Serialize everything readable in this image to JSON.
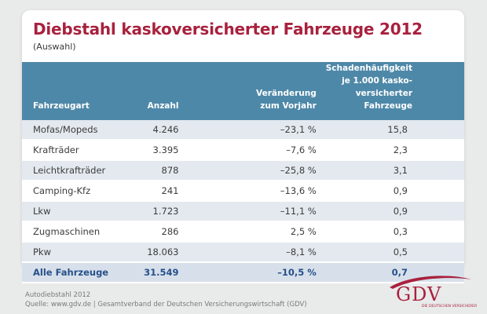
{
  "title": "Diebstahl kaskoversicherter Fahrzeuge 2012",
  "subtitle": "(Auswahl)",
  "table": {
    "headers": {
      "vehicle_type": "Fahrzeugart",
      "count": "Anzahl",
      "change_line1": "Veränderung",
      "change_line2": "zum Vorjahr",
      "freq_line1": "Schadenhäufigkeit",
      "freq_line2": "je 1.000 kasko-",
      "freq_line3": "versicherter Fahrzeuge"
    },
    "rows": [
      {
        "vehicle_type": "Mofas/Mopeds",
        "count": "4.246",
        "change": "–23,1 %",
        "freq": "15,8"
      },
      {
        "vehicle_type": "Krafträder",
        "count": "3.395",
        "change": "–7,6 %",
        "freq": "2,3"
      },
      {
        "vehicle_type": "Leichtkrafträder",
        "count": "878",
        "change": "–25,8 %",
        "freq": "3,1"
      },
      {
        "vehicle_type": "Camping-Kfz",
        "count": "241",
        "change": "–13,6 %",
        "freq": "0,9"
      },
      {
        "vehicle_type": "Lkw",
        "count": "1.723",
        "change": "–11,1 %",
        "freq": "0,9"
      },
      {
        "vehicle_type": "Zugmaschinen",
        "count": "286",
        "change": "2,5 %",
        "freq": "0,3"
      },
      {
        "vehicle_type": "Pkw",
        "count": "18.063",
        "change": "–8,1 %",
        "freq": "0,5"
      }
    ],
    "total": {
      "vehicle_type": "Alle Fahrzeuge",
      "count": "31.549",
      "change": "–10,5 %",
      "freq": "0,7"
    }
  },
  "footer": {
    "line1": "Autodiebstahl 2012",
    "line2": "Quelle: www.gdv.de | Gesamtverband der Deutschen Versicherungswirtschaft (GDV)"
  },
  "logo": {
    "text": "GDV",
    "subtext": "DIE DEUTSCHEN VERSICHERER"
  },
  "colors": {
    "title": "#a8213e",
    "header_bg": "#4e88a8",
    "row_alt": "#e3e9ef",
    "total_text": "#27508a",
    "background": "#e9eaea"
  }
}
